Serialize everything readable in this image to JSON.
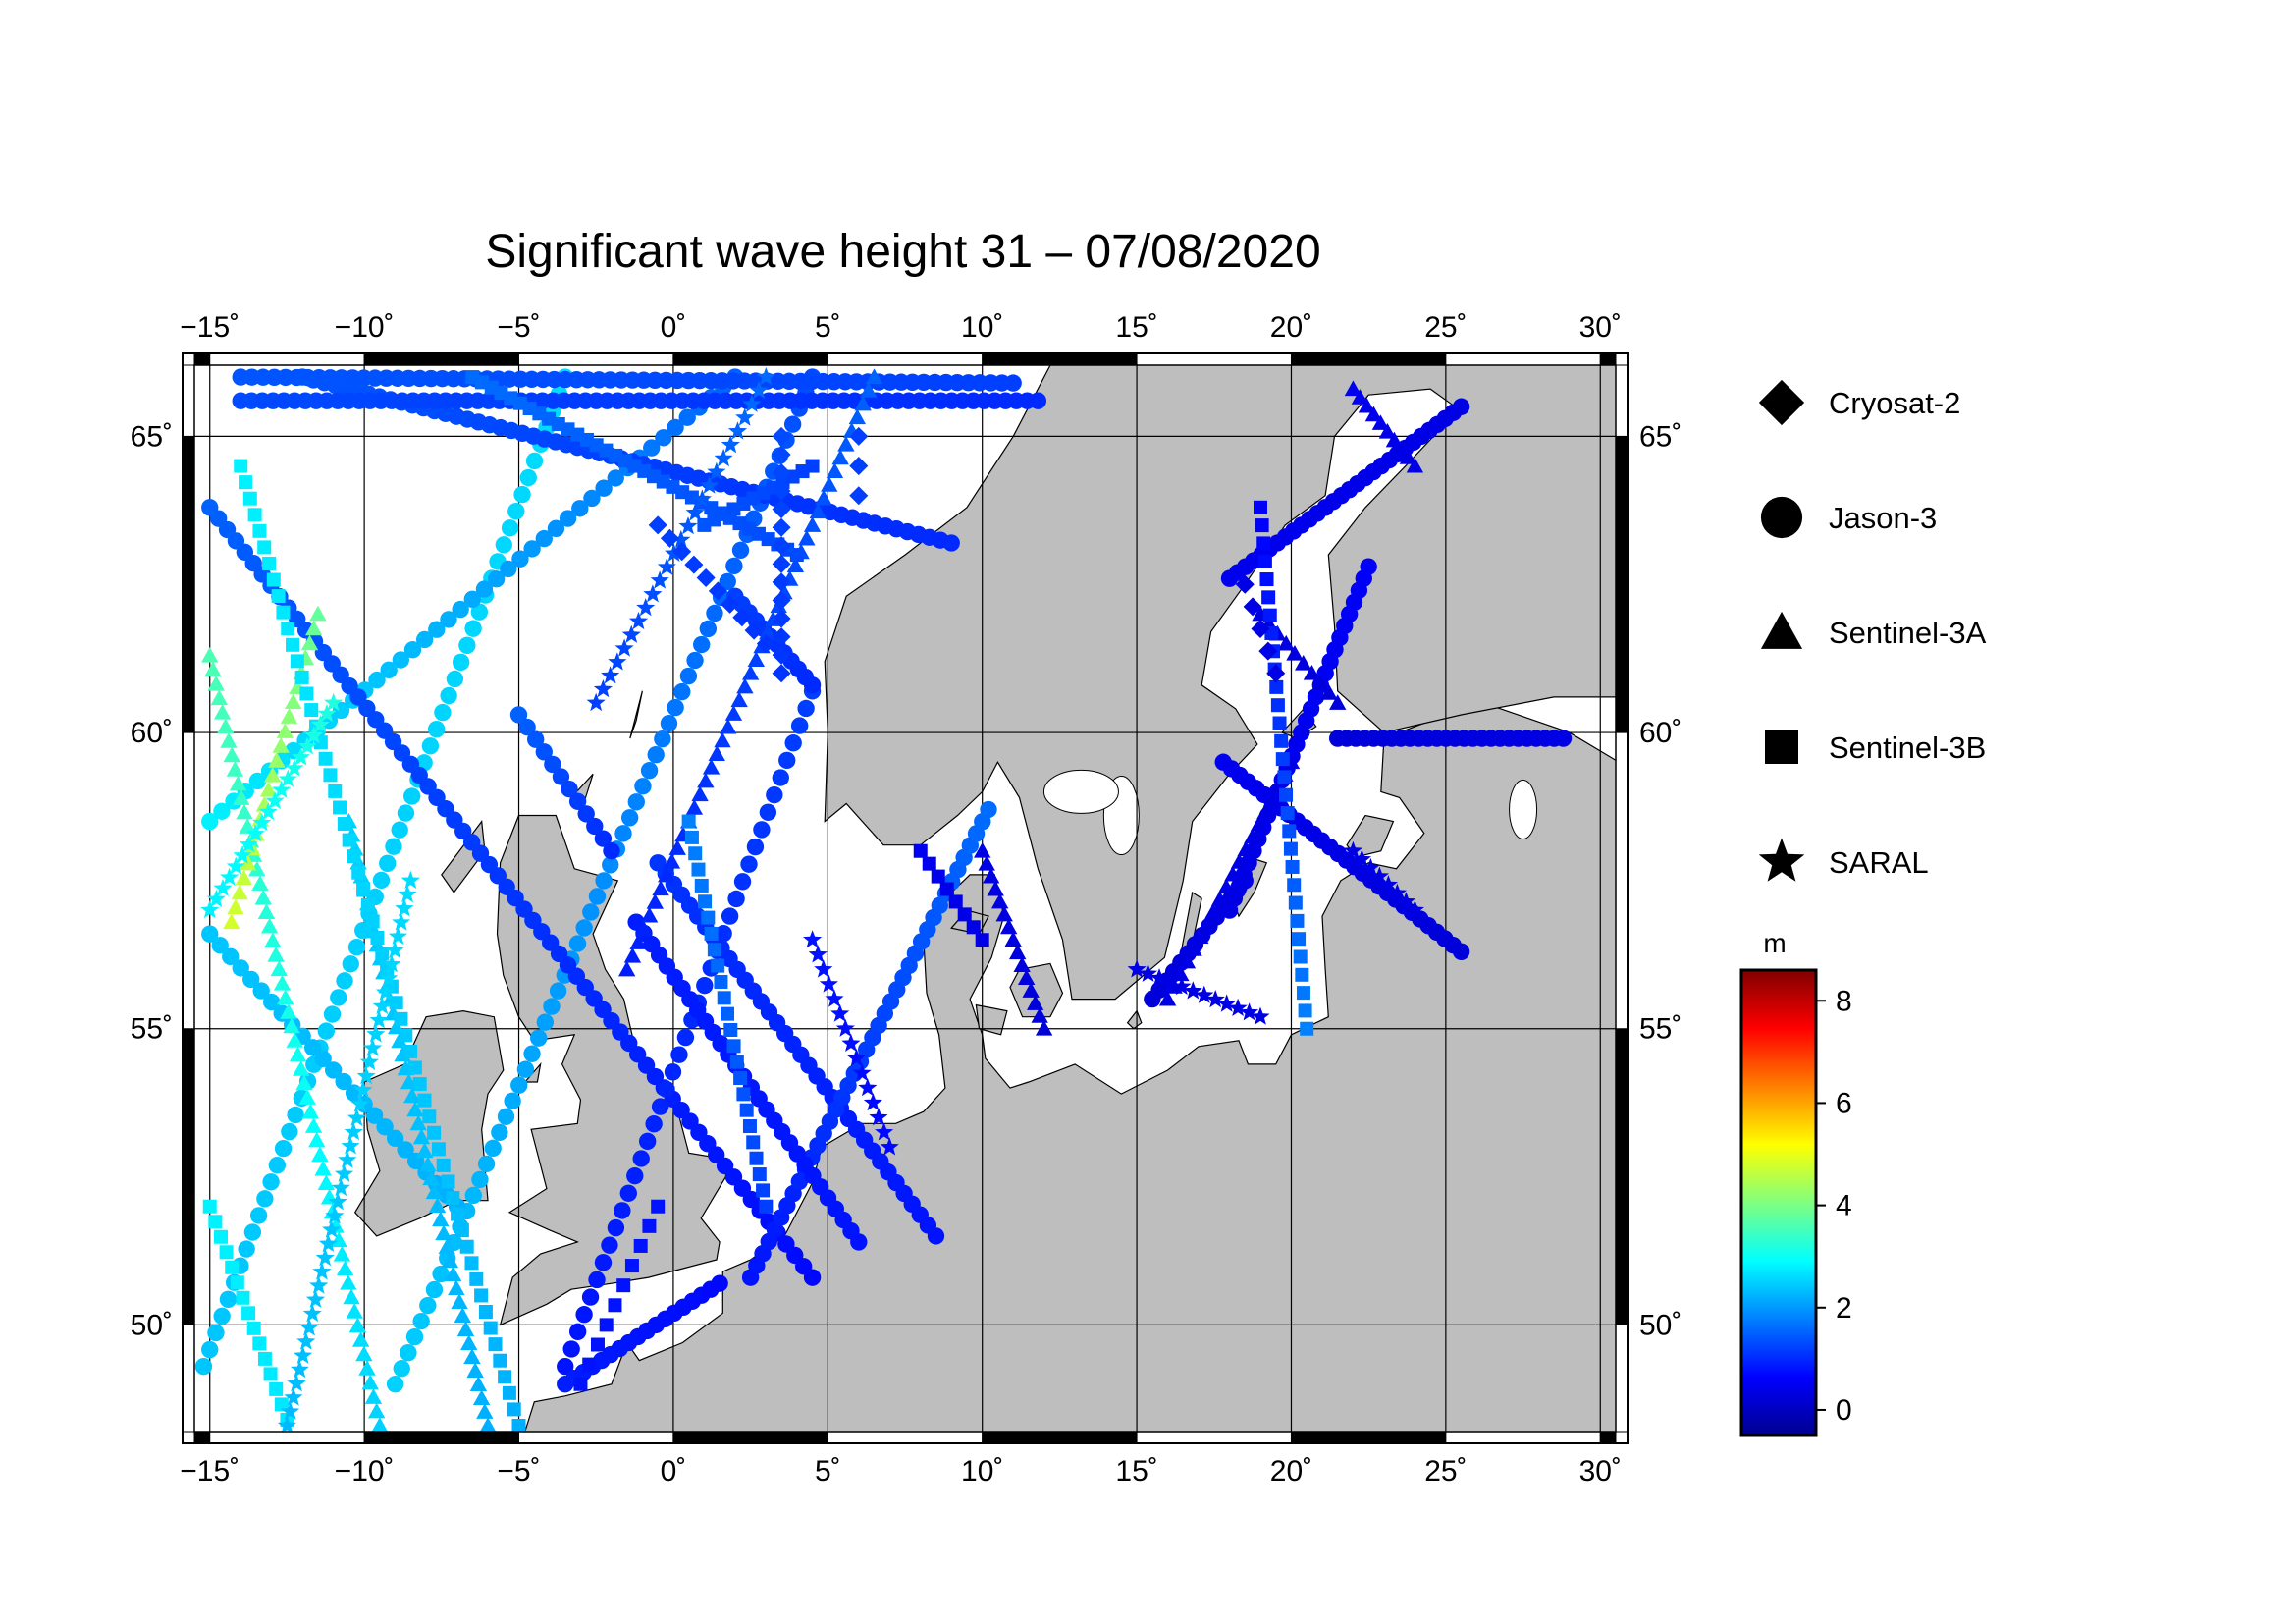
{
  "title": "Significant wave height 31 – 07/08/2020",
  "axes": {
    "lon_min": -15.5,
    "lon_max": 30.5,
    "lat_min": 48.2,
    "lat_max": 66.2,
    "lon_ticks": [
      -15,
      -10,
      -5,
      0,
      5,
      10,
      15,
      20,
      25,
      30
    ],
    "lon_tick_labels": [
      "−15˚",
      "−10˚",
      "−5˚",
      "0˚",
      "5˚",
      "10˚",
      "15˚",
      "20˚",
      "25˚",
      "30˚"
    ],
    "lat_ticks": [
      50,
      55,
      60,
      65
    ],
    "lat_tick_labels": [
      "50˚",
      "55˚",
      "60˚",
      "65˚"
    ],
    "grid": true
  },
  "legend": {
    "position": "right",
    "items": [
      {
        "label": "Cryosat-2",
        "symbol": "diamond"
      },
      {
        "label": "Jason-3",
        "symbol": "circle"
      },
      {
        "label": "Sentinel-3A",
        "symbol": "triangle"
      },
      {
        "label": "Sentinel-3B",
        "symbol": "square"
      },
      {
        "label": "SARAL",
        "symbol": "star"
      }
    ]
  },
  "colorbar": {
    "unit": "m",
    "min": -0.5,
    "max": 8.6,
    "ticks": [
      0,
      2,
      4,
      6,
      8
    ],
    "tick_labels": [
      "0",
      "2",
      "4",
      "6",
      "8"
    ],
    "colormap": "jet"
  },
  "colors": {
    "land": "#bebebe",
    "sea": "#ffffff",
    "frame": "#000000"
  },
  "chart_data": {
    "type": "scatter",
    "x_unit": "degrees longitude",
    "y_unit": "degrees latitude",
    "value_unit": "m",
    "series": [
      {
        "name": "Jason-3",
        "symbol": "circle",
        "segments": [
          {
            "start": [
              -15.2,
              49.3
            ],
            "end": [
              -3.5,
              66.0
            ],
            "n": 60,
            "hs_start": 2.4,
            "hs_end": 2.6
          },
          {
            "start": [
              -9.0,
              49.0
            ],
            "end": [
              4.5,
              66.0
            ],
            "n": 65,
            "hs_start": 2.5,
            "hs_end": 1.3
          },
          {
            "start": [
              -15.0,
              58.5
            ],
            "end": [
              2.0,
              66.0
            ],
            "n": 45,
            "hs_start": 2.8,
            "hs_end": 1.5
          },
          {
            "start": [
              -15.0,
              63.8
            ],
            "end": [
              4.5,
              50.8
            ],
            "n": 70,
            "hs_start": 1.5,
            "hs_end": 0.7
          },
          {
            "start": [
              -15.0,
              56.6
            ],
            "end": [
              -7.0,
              52.0
            ],
            "n": 25,
            "hs_start": 2.4,
            "hs_end": 2.2
          },
          {
            "start": [
              -3.5,
              49.3
            ],
            "end": [
              4.5,
              60.7
            ],
            "n": 40,
            "hs_start": 0.8,
            "hs_end": 1.2
          },
          {
            "start": [
              -0.5,
              57.8
            ],
            "end": [
              8.5,
              51.5
            ],
            "n": 36,
            "hs_start": 1.1,
            "hs_end": 0.8
          },
          {
            "start": [
              2.5,
              50.8
            ],
            "end": [
              10.2,
              58.7
            ],
            "n": 40,
            "hs_start": 0.8,
            "hs_end": 1.6
          },
          {
            "start": [
              -1.2,
              56.8
            ],
            "end": [
              6.0,
              51.4
            ],
            "n": 30,
            "hs_start": 0.9,
            "hs_end": 0.8
          },
          {
            "start": [
              -5.0,
              60.3
            ],
            "end": [
              -2.0,
              58.0
            ],
            "n": 12,
            "hs_start": 1.5,
            "hs_end": 1.0
          },
          {
            "start": [
              -12.0,
              66.0
            ],
            "end": [
              9.0,
              63.2
            ],
            "n": 60,
            "hs_start": 1.4,
            "hs_end": 1.0
          },
          {
            "start": [
              -14.0,
              65.6
            ],
            "end": [
              11.8,
              65.6
            ],
            "n": 75,
            "hs_start": 1.3,
            "hs_end": 1.0
          },
          {
            "start": [
              -14.0,
              66.0
            ],
            "end": [
              11.0,
              65.9
            ],
            "n": 70,
            "hs_start": 1.4,
            "hs_end": 1.2
          },
          {
            "start": [
              2.0,
              62.3
            ],
            "end": [
              4.5,
              60.8
            ],
            "n": 12,
            "hs_start": 1.2,
            "hs_end": 1.0
          },
          {
            "start": [
              17.8,
              59.5
            ],
            "end": [
              25.5,
              56.3
            ],
            "n": 30,
            "hs_start": 0.5,
            "hs_end": 0.3
          },
          {
            "start": [
              18.0,
              57.0
            ],
            "end": [
              22.5,
              62.8
            ],
            "n": 30,
            "hs_start": 0.4,
            "hs_end": 0.6
          },
          {
            "start": [
              18.0,
              62.6
            ],
            "end": [
              25.5,
              65.5
            ],
            "n": 30,
            "hs_start": 0.5,
            "hs_end": 0.4
          },
          {
            "start": [
              21.5,
              59.9
            ],
            "end": [
              28.8,
              59.9
            ],
            "n": 26,
            "hs_start": 0.3,
            "hs_end": 0.4
          },
          {
            "start": [
              15.5,
              55.5
            ],
            "end": [
              18.5,
              57.5
            ],
            "n": 14,
            "hs_start": 0.3,
            "hs_end": 0.4
          },
          {
            "start": [
              -3.5,
              49.0
            ],
            "end": [
              1.5,
              50.7
            ],
            "n": 18,
            "hs_start": 0.9,
            "hs_end": 0.7
          }
        ]
      },
      {
        "name": "Sentinel-3A",
        "symbol": "triangle",
        "segments": [
          {
            "start": [
              -15.0,
              61.3
            ],
            "end": [
              -9.5,
              48.3
            ],
            "n": 55,
            "hs_start": 3.6,
            "hs_end": 2.5
          },
          {
            "start": [
              -14.3,
              56.8
            ],
            "end": [
              -11.5,
              62.0
            ],
            "n": 22,
            "hs_start": 4.8,
            "hs_end": 3.8
          },
          {
            "start": [
              -10.5,
              58.5
            ],
            "end": [
              -6.0,
              48.3
            ],
            "n": 45,
            "hs_start": 2.5,
            "hs_end": 2.2
          },
          {
            "start": [
              -1.5,
              56.0
            ],
            "end": [
              6.5,
              66.0
            ],
            "n": 45,
            "hs_start": 0.9,
            "hs_end": 1.5
          },
          {
            "start": [
              10.0,
              58.0
            ],
            "end": [
              12.0,
              55.0
            ],
            "n": 15,
            "hs_start": 0.4,
            "hs_end": 0.3
          },
          {
            "start": [
              16.0,
              55.5
            ],
            "end": [
              20.0,
              59.5
            ],
            "n": 20,
            "hs_start": 0.4,
            "hs_end": 0.4
          },
          {
            "start": [
              22.0,
              65.8
            ],
            "end": [
              24.0,
              64.5
            ],
            "n": 10,
            "hs_start": 0.5,
            "hs_end": 0.4
          },
          {
            "start": [
              19.0,
              62.0
            ],
            "end": [
              21.5,
              60.5
            ],
            "n": 10,
            "hs_start": 0.4,
            "hs_end": 0.3
          }
        ]
      },
      {
        "name": "Sentinel-3B",
        "symbol": "square",
        "segments": [
          {
            "start": [
              -14.0,
              64.5
            ],
            "end": [
              -5.0,
              48.3
            ],
            "n": 60,
            "hs_start": 2.8,
            "hs_end": 2.2
          },
          {
            "start": [
              -15.0,
              52.0
            ],
            "end": [
              -12.5,
              48.4
            ],
            "n": 15,
            "hs_start": 2.8,
            "hs_end": 2.7
          },
          {
            "start": [
              0.5,
              58.5
            ],
            "end": [
              3.0,
              52.0
            ],
            "n": 25,
            "hs_start": 1.8,
            "hs_end": 1.2
          },
          {
            "start": [
              -6.5,
              66.0
            ],
            "end": [
              4.0,
              63.0
            ],
            "n": 35,
            "hs_start": 1.6,
            "hs_end": 1.3
          },
          {
            "start": [
              8.0,
              58.0
            ],
            "end": [
              10.0,
              56.5
            ],
            "n": 8,
            "hs_start": 0.5,
            "hs_end": 0.4
          },
          {
            "start": [
              20.5,
              55.0
            ],
            "end": [
              19.0,
              63.8
            ],
            "n": 30,
            "hs_start": 1.8,
            "hs_end": 0.6
          },
          {
            "start": [
              1.0,
              63.5
            ],
            "end": [
              4.5,
              64.5
            ],
            "n": 12,
            "hs_start": 1.4,
            "hs_end": 1.2
          },
          {
            "start": [
              -3.0,
              49.0
            ],
            "end": [
              -0.5,
              52.0
            ],
            "n": 10,
            "hs_start": 0.8,
            "hs_end": 0.8
          }
        ]
      },
      {
        "name": "SARAL",
        "symbol": "star",
        "segments": [
          {
            "start": [
              -12.5,
              48.3
            ],
            "end": [
              -8.5,
              57.5
            ],
            "n": 40,
            "hs_start": 2.3,
            "hs_end": 2.6
          },
          {
            "start": [
              -15.0,
              57.0
            ],
            "end": [
              -11.0,
              60.5
            ],
            "n": 20,
            "hs_start": 2.8,
            "hs_end": 3.2
          },
          {
            "start": [
              -2.5,
              60.5
            ],
            "end": [
              3.0,
              66.0
            ],
            "n": 25,
            "hs_start": 1.2,
            "hs_end": 1.6
          },
          {
            "start": [
              4.5,
              56.5
            ],
            "end": [
              7.0,
              53.0
            ],
            "n": 15,
            "hs_start": 0.8,
            "hs_end": 0.7
          },
          {
            "start": [
              15.0,
              56.0
            ],
            "end": [
              19.0,
              55.2
            ],
            "n": 12,
            "hs_start": 0.4,
            "hs_end": 0.4
          },
          {
            "start": [
              22.0,
              58.0
            ],
            "end": [
              24.0,
              57.0
            ],
            "n": 8,
            "hs_start": 0.4,
            "hs_end": 0.4
          }
        ]
      },
      {
        "name": "Cryosat-2",
        "symbol": "diamond",
        "segments": [
          {
            "start": [
              3.5,
              65.0
            ],
            "end": [
              3.5,
              61.0
            ],
            "n": 14,
            "hs_start": 1.3,
            "hs_end": 1.1
          },
          {
            "start": [
              -0.5,
              63.5
            ],
            "end": [
              3.0,
              61.5
            ],
            "n": 10,
            "hs_start": 1.2,
            "hs_end": 1.1
          },
          {
            "start": [
              18.5,
              62.5
            ],
            "end": [
              19.5,
              61.0
            ],
            "n": 5,
            "hs_start": 0.4,
            "hs_end": 0.4
          },
          {
            "start": [
              6.0,
              64.0
            ],
            "end": [
              6.0,
              65.0
            ],
            "n": 3,
            "hs_start": 1.2,
            "hs_end": 1.2
          }
        ]
      }
    ]
  }
}
